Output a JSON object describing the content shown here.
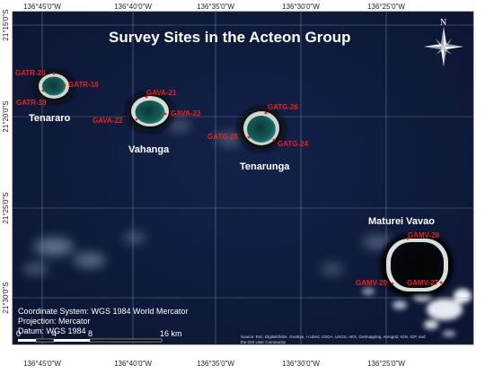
{
  "title": "Survey Sites in the Acteon Group",
  "top_ticks": [
    "136°45'0\"W",
    "136°40'0\"W",
    "136°35'0\"W",
    "136°30'0\"W",
    "136°25'0\"W"
  ],
  "bottom_ticks": [
    "136°45'0\"W",
    "136°40'0\"W",
    "136°35'0\"W",
    "136°30'0\"W",
    "136°25'0\"W"
  ],
  "left_ticks": [
    "21°15'0\"S",
    "21°20'0\"S",
    "21°25'0\"S",
    "21°30'0\"S"
  ],
  "islands": [
    {
      "name": "Tenararo"
    },
    {
      "name": "Vahanga"
    },
    {
      "name": "Tenarunga"
    },
    {
      "name": "Maturei Vavao"
    }
  ],
  "sites": [
    {
      "label": "GATR-20"
    },
    {
      "label": "GATR-18"
    },
    {
      "label": "GATR-19"
    },
    {
      "label": "GAVA-21"
    },
    {
      "label": "GAVA-22"
    },
    {
      "label": "GAVA-23"
    },
    {
      "label": "GATG-26"
    },
    {
      "label": "GATG-25"
    },
    {
      "label": "GATG-24"
    },
    {
      "label": "GAMV-28"
    },
    {
      "label": "GAMV-29"
    },
    {
      "label": "GAMV-27"
    }
  ],
  "info": {
    "coordinate_system": "Coordinate System: WGS 1984 World Mercator",
    "projection": "Projection: Mercator",
    "datum": "Datum: WGS 1984"
  },
  "scale_bar": {
    "labels": [
      "0",
      "4",
      "8",
      "16 km"
    ]
  },
  "north_label": "N",
  "source": "Source: Esri, DigitalGlobe, GeoEye, i-cubed, USDA, USGS, AEX, Getmapping, Aerogrid, IGN, IGP, and the GIS User Community",
  "colors": {
    "ocean": "#101c3a",
    "site_label": "#e8231c",
    "grid": "#8a93a6"
  }
}
